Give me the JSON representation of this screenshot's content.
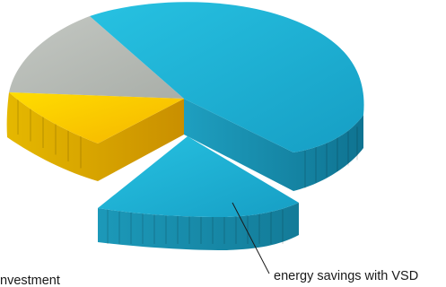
{
  "chart_data": {
    "type": "pie",
    "style": "3d-exploded",
    "slices": [
      {
        "key": "big",
        "value": 45,
        "color": "#1fb0d2",
        "side_color": "#178aa6"
      },
      {
        "key": "savings",
        "label": "energy savings with VSD",
        "value": 17,
        "color": "#23b4d6",
        "side_color": "#1a8fae",
        "exploded": true
      },
      {
        "key": "investment",
        "label": "nvestment",
        "value": 23,
        "color": "#f5c400",
        "side_color": "#d09a00"
      },
      {
        "key": "gray",
        "value": 15,
        "color": "#b5bab4",
        "side_color": "#9aa09a"
      }
    ],
    "legend": "none"
  }
}
